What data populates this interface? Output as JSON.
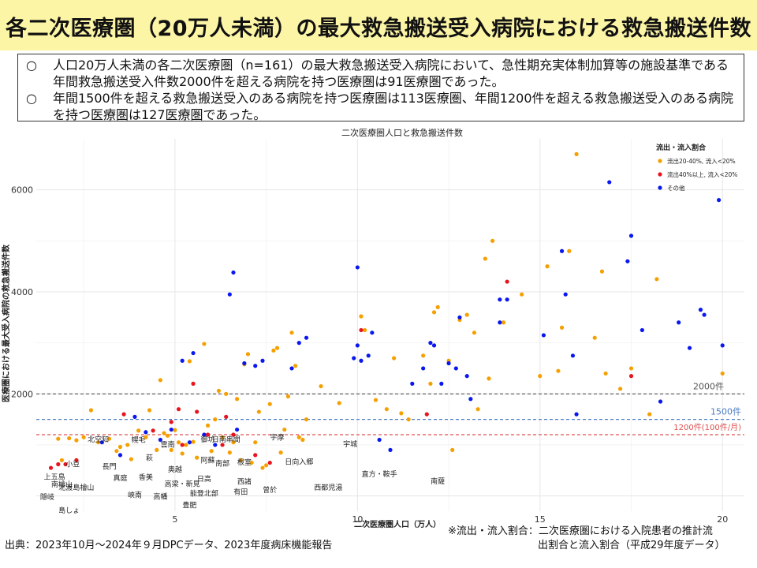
{
  "header": {
    "title": "各二次医療圏（20万人未満）の最大救急搬送受入病院における救急搬送件数"
  },
  "summary": {
    "bullets": [
      {
        "mark": "○",
        "text": "人口20万人未満の各二次医療圏（n=161）の最大救急搬送受入病院において、急性期充実体制加算等の施設基準である年間救急搬送受入件数2000件を超える病院を持つ医療圏は91医療圏であった。"
      },
      {
        "mark": "○",
        "text": "年間1500件を超える救急搬送受入のある病院を持つ医療圏は113医療圏、年間1200件を超える救急搬送受入のある病院を持つ医療圏は127医療圏であった。"
      }
    ]
  },
  "footer": {
    "source": "出典：2023年10月～2024年９月DPCデータ、2023年度病床機能報告",
    "note_line1": "※流出・流入割合：二次医療圏における入院患者の推計流",
    "note_line2": "出割合と流入割合（平成29年度データ）"
  },
  "chart_data": {
    "type": "scatter",
    "title": "二次医療圏人口と救急搬送件数",
    "xlabel": "二次医療圏人口（万人）",
    "ylabel": "医療圏における最大受入病院の救急搬送件数",
    "xlim": [
      1.2,
      20.6
    ],
    "ylim": [
      -300,
      7000
    ],
    "xticks": [
      5,
      10,
      15,
      20
    ],
    "yticks": [
      2000,
      4000,
      6000
    ],
    "grid": true,
    "legend_position": "top-right",
    "legend_title": "流出・流入割合",
    "series": [
      {
        "name": "流出20-40%, 流入<20%",
        "color": "#F5A000",
        "points": [
          [
            1.8,
            1120
          ],
          [
            1.9,
            700
          ],
          [
            2.1,
            1130
          ],
          [
            2.3,
            1090
          ],
          [
            2.5,
            1150
          ],
          [
            2.7,
            1680
          ],
          [
            2.9,
            1050
          ],
          [
            3.2,
            1120
          ],
          [
            3.4,
            880
          ],
          [
            3.5,
            960
          ],
          [
            3.7,
            1000
          ],
          [
            3.8,
            720
          ],
          [
            4.0,
            1280
          ],
          [
            4.2,
            1150
          ],
          [
            4.3,
            1680
          ],
          [
            4.5,
            900
          ],
          [
            4.6,
            2270
          ],
          [
            4.7,
            1230
          ],
          [
            4.8,
            1180
          ],
          [
            4.9,
            900
          ],
          [
            5.0,
            1290
          ],
          [
            5.1,
            1050
          ],
          [
            5.2,
            830
          ],
          [
            5.3,
            1000
          ],
          [
            5.4,
            2640
          ],
          [
            5.5,
            1060
          ],
          [
            5.6,
            750
          ],
          [
            5.8,
            2980
          ],
          [
            5.9,
            1380
          ],
          [
            6.0,
            880
          ],
          [
            6.1,
            1500
          ],
          [
            6.2,
            2060
          ],
          [
            6.3,
            1150
          ],
          [
            6.4,
            2000
          ],
          [
            6.5,
            850
          ],
          [
            6.6,
            1050
          ],
          [
            6.7,
            1900
          ],
          [
            6.8,
            700
          ],
          [
            6.9,
            2580
          ],
          [
            7.0,
            2780
          ],
          [
            7.1,
            650
          ],
          [
            7.2,
            1050
          ],
          [
            7.3,
            1650
          ],
          [
            7.4,
            550
          ],
          [
            7.5,
            600
          ],
          [
            7.6,
            1800
          ],
          [
            7.7,
            2850
          ],
          [
            7.8,
            2900
          ],
          [
            7.9,
            850
          ],
          [
            8.0,
            1300
          ],
          [
            8.1,
            1950
          ],
          [
            8.2,
            3200
          ],
          [
            8.3,
            2550
          ],
          [
            8.4,
            1150
          ],
          [
            8.5,
            1100
          ],
          [
            8.6,
            1500
          ],
          [
            9.0,
            2150
          ],
          [
            9.5,
            1820
          ],
          [
            10.1,
            3520
          ],
          [
            10.2,
            3250
          ],
          [
            10.5,
            1880
          ],
          [
            10.8,
            1700
          ],
          [
            11.0,
            2700
          ],
          [
            11.2,
            1620
          ],
          [
            11.4,
            1500
          ],
          [
            11.8,
            2750
          ],
          [
            12.0,
            2200
          ],
          [
            12.1,
            3600
          ],
          [
            12.2,
            3700
          ],
          [
            12.5,
            2650
          ],
          [
            12.6,
            900
          ],
          [
            12.8,
            3450
          ],
          [
            13.0,
            3550
          ],
          [
            13.2,
            3200
          ],
          [
            13.3,
            1700
          ],
          [
            13.5,
            4650
          ],
          [
            13.6,
            2300
          ],
          [
            13.7,
            5000
          ],
          [
            14.0,
            3400
          ],
          [
            14.5,
            3950
          ],
          [
            15.0,
            2350
          ],
          [
            15.2,
            4500
          ],
          [
            15.5,
            2450
          ],
          [
            15.6,
            3300
          ],
          [
            15.8,
            4800
          ],
          [
            16.0,
            6700
          ],
          [
            16.5,
            3100
          ],
          [
            16.7,
            4400
          ],
          [
            16.8,
            2400
          ],
          [
            17.2,
            2100
          ],
          [
            17.5,
            2500
          ],
          [
            18.0,
            1600
          ],
          [
            18.2,
            4250
          ],
          [
            20.0,
            2400
          ]
        ]
      },
      {
        "name": "流出40%以上, 流入<20%",
        "color": "#E8141E",
        "points": [
          [
            1.6,
            550
          ],
          [
            1.8,
            620
          ],
          [
            2.0,
            620
          ],
          [
            2.3,
            700
          ],
          [
            3.6,
            1600
          ],
          [
            4.4,
            1280
          ],
          [
            4.9,
            1450
          ],
          [
            5.1,
            1700
          ],
          [
            5.2,
            1000
          ],
          [
            5.5,
            2200
          ],
          [
            5.6,
            1650
          ],
          [
            5.9,
            1200
          ],
          [
            6.3,
            1000
          ],
          [
            6.4,
            1550
          ],
          [
            6.6,
            1200
          ],
          [
            7.2,
            800
          ],
          [
            7.6,
            650
          ],
          [
            10.1,
            3250
          ],
          [
            11.9,
            1600
          ],
          [
            14.1,
            4200
          ],
          [
            17.5,
            2350
          ]
        ]
      },
      {
        "name": "その他",
        "color": "#0A18F0",
        "points": [
          [
            3.0,
            1050
          ],
          [
            3.5,
            800
          ],
          [
            3.9,
            1550
          ],
          [
            4.2,
            1250
          ],
          [
            4.6,
            1100
          ],
          [
            4.9,
            1300
          ],
          [
            5.2,
            2650
          ],
          [
            5.4,
            1050
          ],
          [
            5.5,
            2800
          ],
          [
            5.8,
            1200
          ],
          [
            6.1,
            1000
          ],
          [
            6.5,
            3950
          ],
          [
            6.6,
            4380
          ],
          [
            6.7,
            1300
          ],
          [
            6.9,
            2600
          ],
          [
            7.2,
            2550
          ],
          [
            7.4,
            2650
          ],
          [
            8.2,
            2500
          ],
          [
            8.4,
            3000
          ],
          [
            8.6,
            3100
          ],
          [
            9.9,
            2700
          ],
          [
            10.0,
            2950
          ],
          [
            10.0,
            4480
          ],
          [
            10.1,
            2650
          ],
          [
            10.3,
            2750
          ],
          [
            10.4,
            3200
          ],
          [
            10.6,
            1100
          ],
          [
            10.9,
            900
          ],
          [
            11.5,
            2200
          ],
          [
            11.8,
            2500
          ],
          [
            12.0,
            3000
          ],
          [
            12.1,
            2950
          ],
          [
            12.3,
            2200
          ],
          [
            12.5,
            2600
          ],
          [
            12.7,
            2500
          ],
          [
            12.8,
            3500
          ],
          [
            13.0,
            2350
          ],
          [
            13.1,
            1900
          ],
          [
            13.9,
            3400
          ],
          [
            13.9,
            3850
          ],
          [
            14.1,
            3850
          ],
          [
            15.1,
            3150
          ],
          [
            15.6,
            4800
          ],
          [
            15.7,
            3950
          ],
          [
            15.9,
            2750
          ],
          [
            16.0,
            1600
          ],
          [
            16.9,
            6150
          ],
          [
            17.4,
            4600
          ],
          [
            17.5,
            5100
          ],
          [
            17.8,
            3250
          ],
          [
            18.3,
            1850
          ],
          [
            18.8,
            3400
          ],
          [
            19.1,
            2900
          ],
          [
            19.4,
            3650
          ],
          [
            19.5,
            3550
          ],
          [
            19.9,
            5800
          ],
          [
            20.0,
            2950
          ]
        ]
      }
    ],
    "reference_lines": [
      {
        "y": 2000,
        "label": "2000件",
        "color": "#555555"
      },
      {
        "y": 1500,
        "label": "1500件",
        "color": "#4A7CC4"
      },
      {
        "y": 1200,
        "label": "1200件(100件/月)",
        "color": "#E05050"
      }
    ],
    "point_labels": [
      {
        "text": "上五島",
        "x": 1.7,
        "y": 330
      },
      {
        "text": "小豆",
        "x": 2.2,
        "y": 570
      },
      {
        "text": "南檜山",
        "x": 1.9,
        "y": 180
      },
      {
        "text": "隠岐",
        "x": 1.5,
        "y": -70
      },
      {
        "text": "島しょ",
        "x": 2.1,
        "y": -330
      },
      {
        "text": "北空知",
        "x": 2.9,
        "y": 1060
      },
      {
        "text": "長門",
        "x": 3.2,
        "y": 530
      },
      {
        "text": "北渡島檜山",
        "x": 2.3,
        "y": 120
      },
      {
        "text": "幌毛",
        "x": 4.0,
        "y": 1050
      },
      {
        "text": "真庭",
        "x": 3.5,
        "y": 300
      },
      {
        "text": "萩",
        "x": 4.3,
        "y": 700
      },
      {
        "text": "雲南",
        "x": 4.8,
        "y": 960
      },
      {
        "text": "峡南",
        "x": 3.9,
        "y": -30
      },
      {
        "text": "香美",
        "x": 4.2,
        "y": 320
      },
      {
        "text": "奥越",
        "x": 5.0,
        "y": 470
      },
      {
        "text": "高梁・新見",
        "x": 5.2,
        "y": 190
      },
      {
        "text": "高幡",
        "x": 4.6,
        "y": -60
      },
      {
        "text": "豊肥",
        "x": 5.4,
        "y": -230
      },
      {
        "text": "阿蘇",
        "x": 5.9,
        "y": 650
      },
      {
        "text": "御坊",
        "x": 5.9,
        "y": 1060
      },
      {
        "text": "能登北部",
        "x": 5.8,
        "y": 0
      },
      {
        "text": "日高",
        "x": 5.8,
        "y": 290
      },
      {
        "text": "南部",
        "x": 6.3,
        "y": 590
      },
      {
        "text": "日南串間",
        "x": 6.4,
        "y": 1060
      },
      {
        "text": "根室",
        "x": 6.9,
        "y": 610
      },
      {
        "text": "西諸",
        "x": 6.9,
        "y": 230
      },
      {
        "text": "有田",
        "x": 6.8,
        "y": 30
      },
      {
        "text": "宇摩",
        "x": 7.8,
        "y": 1100
      },
      {
        "text": "曽於",
        "x": 7.6,
        "y": 70
      },
      {
        "text": "日向入郷",
        "x": 8.4,
        "y": 620
      },
      {
        "text": "宇城",
        "x": 9.8,
        "y": 970
      },
      {
        "text": "西都児湯",
        "x": 9.2,
        "y": 120
      },
      {
        "text": "直方・鞍手",
        "x": 10.6,
        "y": 380
      },
      {
        "text": "南薩",
        "x": 12.2,
        "y": 240
      }
    ]
  }
}
